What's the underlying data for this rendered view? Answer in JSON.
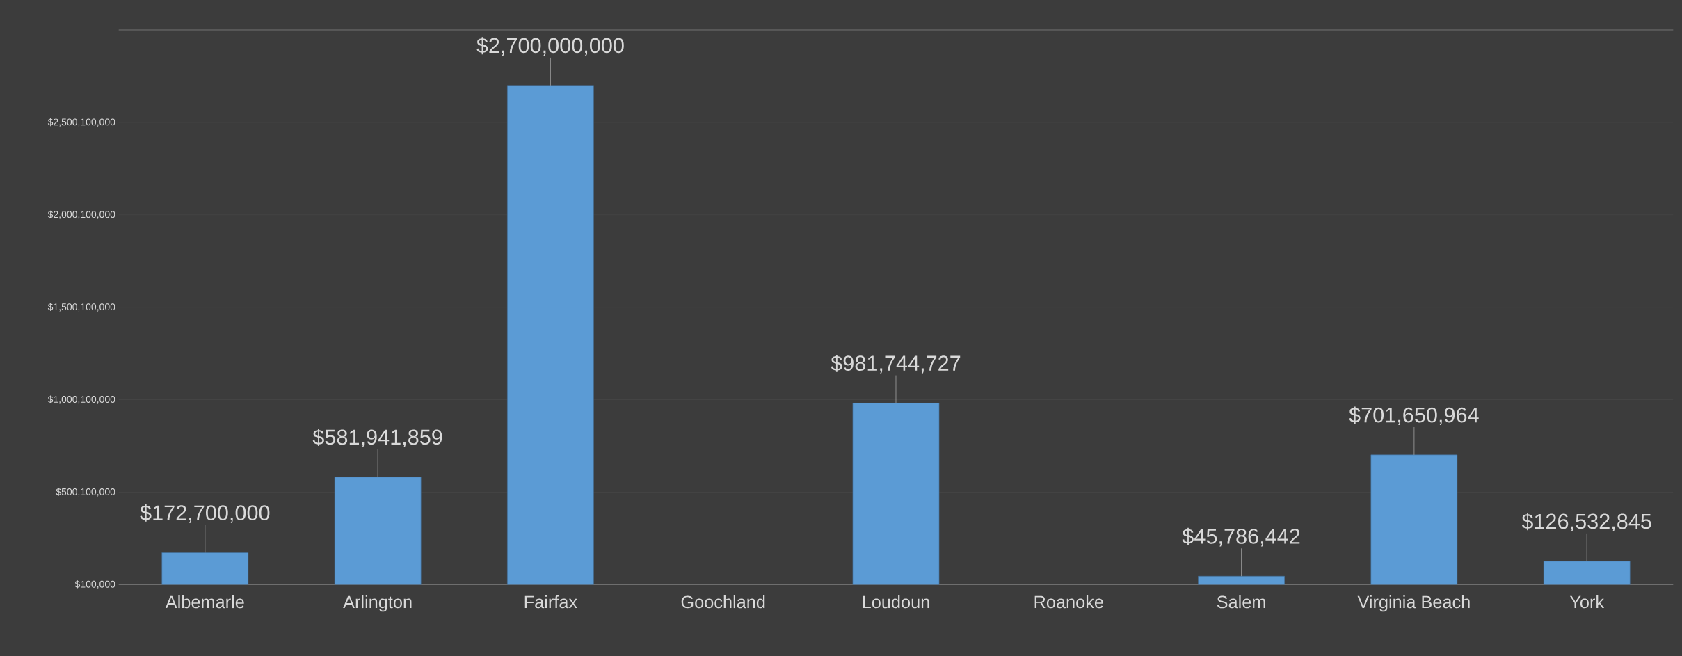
{
  "chart_data": {
    "type": "bar",
    "categories": [
      "Albemarle",
      "Arlington",
      "Fairfax",
      "Goochland",
      "Loudoun",
      "Roanoke",
      "Salem",
      "Virginia Beach",
      "York"
    ],
    "values": [
      172700000,
      581941859,
      2700000000,
      null,
      981744727,
      null,
      45786442,
      701650964,
      126532845
    ],
    "value_labels": [
      "$172,700,000",
      "$581,941,859",
      "$2,700,000,000",
      null,
      "$981,744,727",
      null,
      "$45,786,442",
      "$701,650,964",
      "$126,532,845"
    ],
    "color": "#5b9bd5",
    "yticks": [
      {
        "value": 100000,
        "label": "$100,000"
      },
      {
        "value": 500100000,
        "label": "$500,100,000"
      },
      {
        "value": 1000100000,
        "label": "$1,000,100,000"
      },
      {
        "value": 1500100000,
        "label": "$1,500,100,000"
      },
      {
        "value": 2000100000,
        "label": "$2,000,100,000"
      },
      {
        "value": 2500100000,
        "label": "$2,500,100,000"
      }
    ],
    "ylim": [
      100000,
      3000100000
    ],
    "grid": "y"
  }
}
